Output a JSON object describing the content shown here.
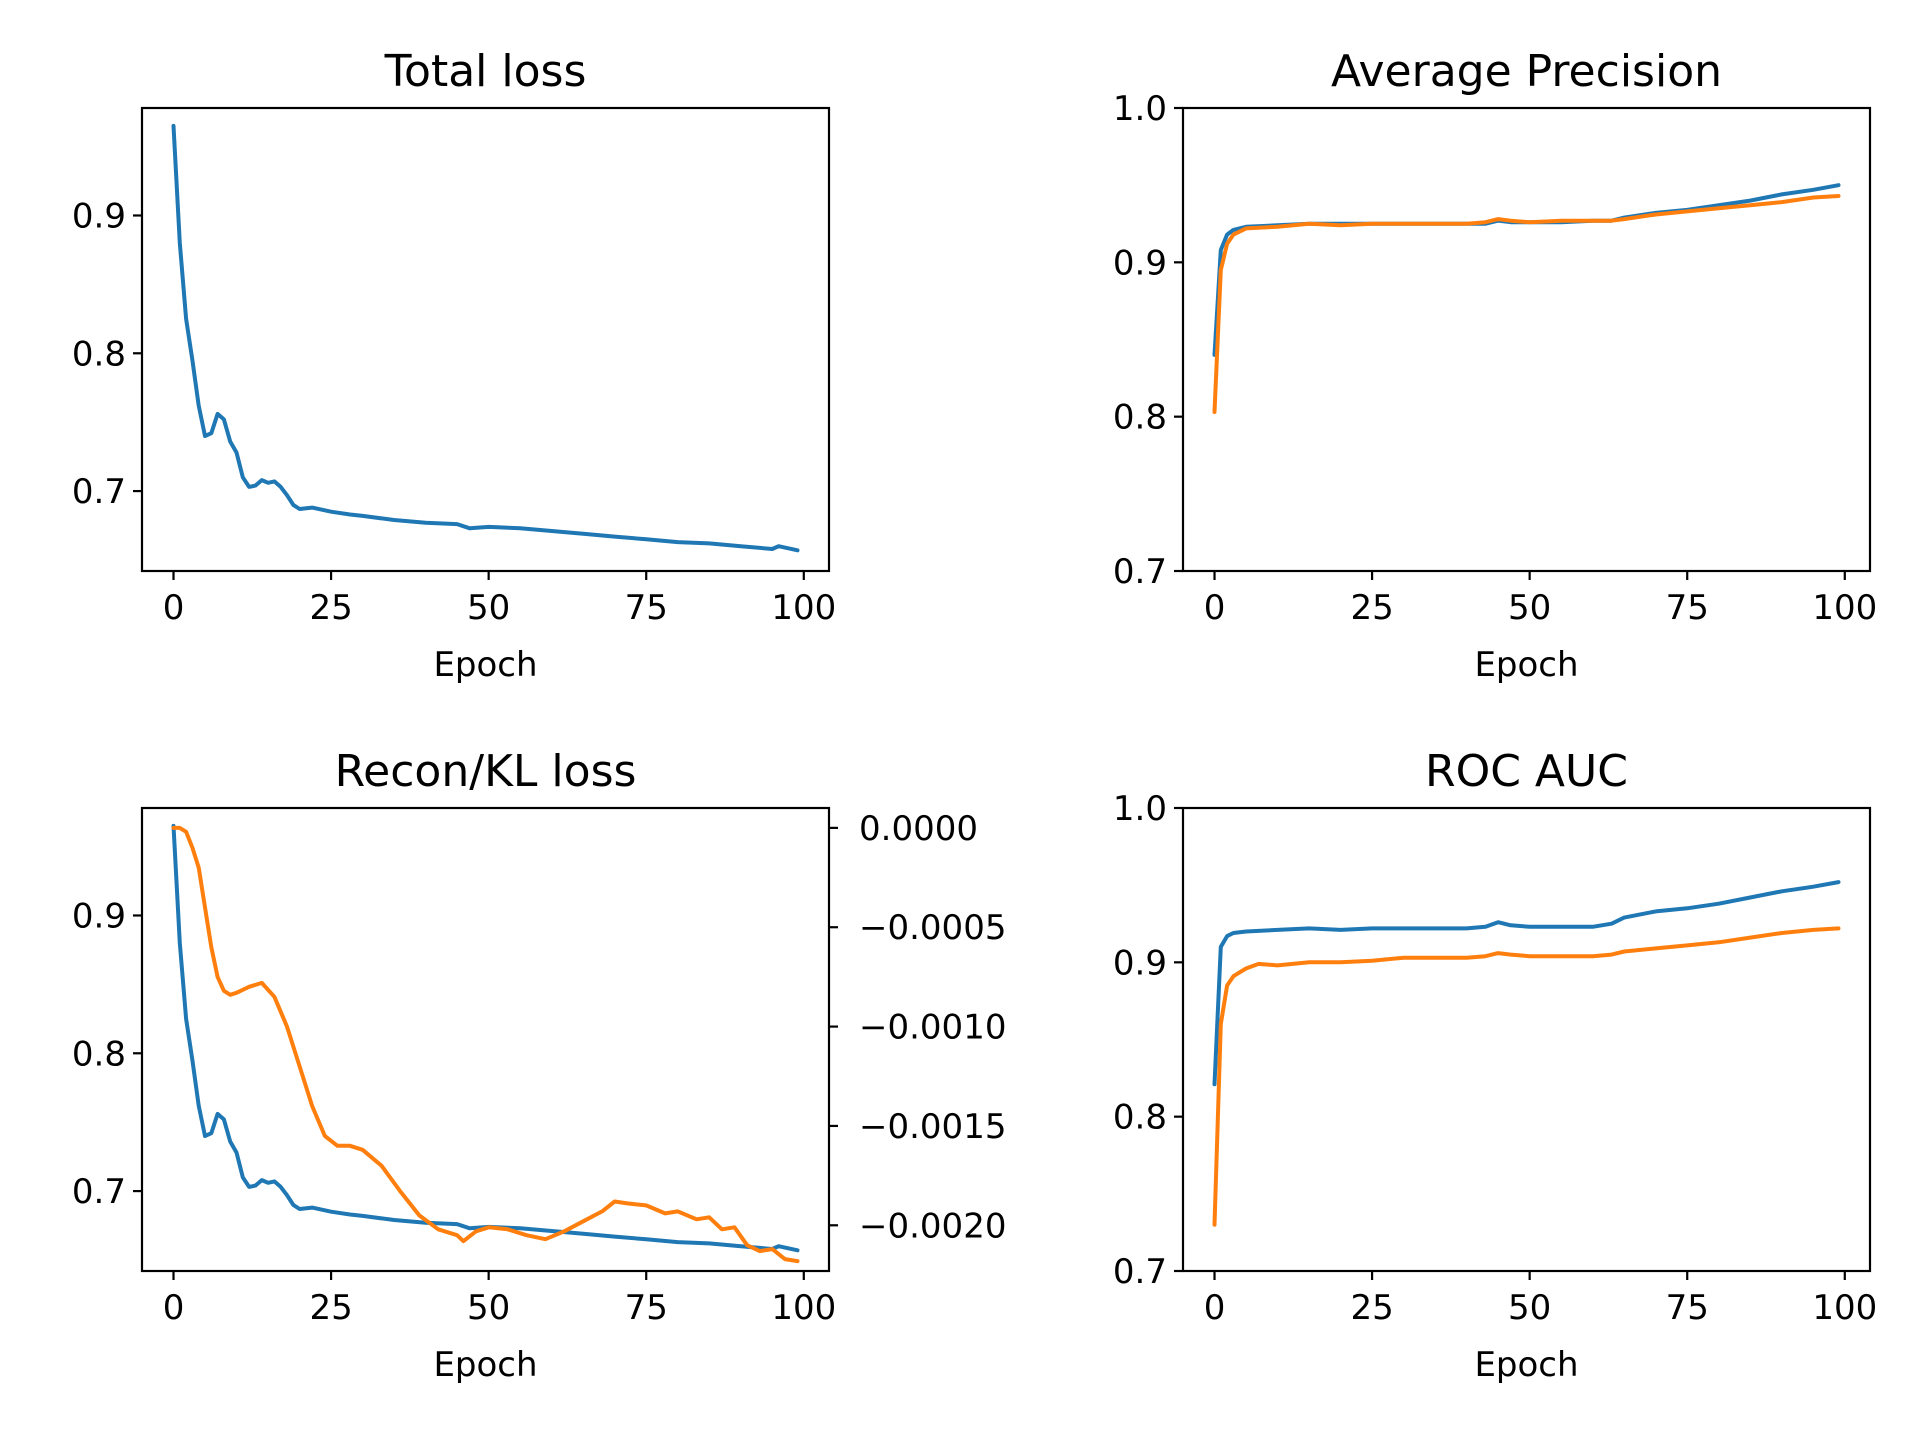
{
  "chart_data": [
    {
      "type": "line",
      "title": "Total loss",
      "xlabel": "Epoch",
      "xlim": [
        -5,
        104
      ],
      "ylim": [
        0.642,
        0.978
      ],
      "x_ticks": [
        0,
        25,
        50,
        75,
        100
      ],
      "x_tick_labels": [
        "0",
        "25",
        "50",
        "75",
        "100"
      ],
      "y_ticks": [
        0.7,
        0.8,
        0.9
      ],
      "y_tick_labels": [
        "0.7",
        "0.8",
        "0.9"
      ],
      "series": [
        {
          "color": "#1f77b4",
          "axis": "left",
          "x": [
            0,
            1,
            2,
            3,
            4,
            5,
            6,
            7,
            8,
            9,
            10,
            11,
            12,
            13,
            14,
            15,
            16,
            17,
            18,
            19,
            20,
            22,
            25,
            28,
            30,
            35,
            40,
            45,
            47,
            50,
            55,
            60,
            65,
            70,
            75,
            80,
            85,
            90,
            95,
            96,
            99
          ],
          "y": [
            0.965,
            0.88,
            0.825,
            0.795,
            0.762,
            0.74,
            0.742,
            0.756,
            0.752,
            0.736,
            0.728,
            0.71,
            0.703,
            0.704,
            0.708,
            0.706,
            0.707,
            0.703,
            0.697,
            0.69,
            0.687,
            0.688,
            0.685,
            0.683,
            0.682,
            0.679,
            0.677,
            0.676,
            0.673,
            0.674,
            0.673,
            0.671,
            0.669,
            0.667,
            0.665,
            0.663,
            0.662,
            0.66,
            0.658,
            0.66,
            0.657
          ]
        }
      ]
    },
    {
      "type": "line",
      "title": "Average Precision",
      "xlabel": "Epoch",
      "xlim": [
        -5,
        104
      ],
      "ylim": [
        0.7,
        1.0
      ],
      "x_ticks": [
        0,
        25,
        50,
        75,
        100
      ],
      "x_tick_labels": [
        "0",
        "25",
        "50",
        "75",
        "100"
      ],
      "y_ticks": [
        0.7,
        0.8,
        0.9,
        1.0
      ],
      "y_tick_labels": [
        "0.7",
        "0.8",
        "0.9",
        "1.0"
      ],
      "series": [
        {
          "color": "#1f77b4",
          "axis": "left",
          "x": [
            0,
            1,
            2,
            3,
            5,
            10,
            15,
            20,
            25,
            30,
            35,
            40,
            43,
            45,
            47,
            50,
            55,
            60,
            63,
            65,
            70,
            75,
            80,
            85,
            90,
            95,
            99
          ],
          "y": [
            0.84,
            0.908,
            0.918,
            0.921,
            0.923,
            0.924,
            0.925,
            0.925,
            0.925,
            0.925,
            0.925,
            0.925,
            0.925,
            0.927,
            0.926,
            0.926,
            0.926,
            0.927,
            0.927,
            0.929,
            0.932,
            0.934,
            0.937,
            0.94,
            0.944,
            0.947,
            0.95
          ]
        },
        {
          "color": "#ff7f0e",
          "axis": "left",
          "x": [
            0,
            1,
            2,
            3,
            5,
            10,
            15,
            20,
            25,
            30,
            35,
            40,
            43,
            45,
            47,
            50,
            55,
            60,
            63,
            65,
            70,
            75,
            80,
            85,
            90,
            95,
            99
          ],
          "y": [
            0.803,
            0.895,
            0.912,
            0.918,
            0.922,
            0.923,
            0.925,
            0.924,
            0.925,
            0.925,
            0.925,
            0.925,
            0.926,
            0.928,
            0.927,
            0.926,
            0.927,
            0.927,
            0.927,
            0.928,
            0.931,
            0.933,
            0.935,
            0.937,
            0.939,
            0.942,
            0.943
          ]
        }
      ]
    },
    {
      "type": "line",
      "title": "Recon/KL loss",
      "xlabel": "Epoch",
      "xlim": [
        -5,
        104
      ],
      "ylim": [
        0.642,
        0.978
      ],
      "y2lim": [
        -0.00223,
        0.0001
      ],
      "x_ticks": [
        0,
        25,
        50,
        75,
        100
      ],
      "x_tick_labels": [
        "0",
        "25",
        "50",
        "75",
        "100"
      ],
      "y_ticks": [
        0.7,
        0.8,
        0.9
      ],
      "y_tick_labels": [
        "0.7",
        "0.8",
        "0.9"
      ],
      "y2_ticks": [
        0.0,
        -0.0005,
        -0.001,
        -0.0015,
        -0.002
      ],
      "y2_tick_labels": [
        "0.0000",
        "−0.0005",
        "−0.0010",
        "−0.0015",
        "−0.0020"
      ],
      "series": [
        {
          "color": "#1f77b4",
          "axis": "left",
          "x": [
            0,
            1,
            2,
            3,
            4,
            5,
            6,
            7,
            8,
            9,
            10,
            11,
            12,
            13,
            14,
            15,
            16,
            17,
            18,
            19,
            20,
            22,
            25,
            28,
            30,
            35,
            40,
            45,
            47,
            50,
            55,
            60,
            65,
            70,
            75,
            80,
            85,
            90,
            95,
            96,
            99
          ],
          "y": [
            0.965,
            0.88,
            0.825,
            0.795,
            0.762,
            0.74,
            0.742,
            0.756,
            0.752,
            0.736,
            0.728,
            0.71,
            0.703,
            0.704,
            0.708,
            0.706,
            0.707,
            0.703,
            0.697,
            0.69,
            0.687,
            0.688,
            0.685,
            0.683,
            0.682,
            0.679,
            0.677,
            0.676,
            0.673,
            0.674,
            0.673,
            0.671,
            0.669,
            0.667,
            0.665,
            0.663,
            0.662,
            0.66,
            0.658,
            0.66,
            0.657
          ]
        },
        {
          "color": "#ff7f0e",
          "axis": "right",
          "x": [
            0,
            1,
            2,
            3,
            4,
            5,
            6,
            7,
            8,
            9,
            10,
            12,
            14,
            16,
            18,
            20,
            22,
            24,
            26,
            28,
            30,
            33,
            36,
            39,
            42,
            45,
            46,
            48,
            50,
            53,
            56,
            59,
            62,
            65,
            68,
            70,
            72,
            75,
            78,
            80,
            83,
            85,
            87,
            89,
            91,
            93,
            95,
            97,
            99
          ],
          "y": [
            0.0,
            0.0,
            -2e-05,
            -0.0001,
            -0.0002,
            -0.0004,
            -0.0006,
            -0.00075,
            -0.00082,
            -0.00084,
            -0.00083,
            -0.0008,
            -0.00078,
            -0.00085,
            -0.001,
            -0.0012,
            -0.0014,
            -0.00155,
            -0.0016,
            -0.0016,
            -0.00162,
            -0.0017,
            -0.00183,
            -0.00195,
            -0.00202,
            -0.00205,
            -0.00208,
            -0.00203,
            -0.00201,
            -0.00202,
            -0.00205,
            -0.00207,
            -0.00203,
            -0.00198,
            -0.00193,
            -0.00188,
            -0.00189,
            -0.0019,
            -0.00194,
            -0.00193,
            -0.00197,
            -0.00196,
            -0.00202,
            -0.00201,
            -0.0021,
            -0.00213,
            -0.00212,
            -0.00217,
            -0.00218
          ]
        }
      ]
    },
    {
      "type": "line",
      "title": "ROC AUC",
      "xlabel": "Epoch",
      "xlim": [
        -5,
        104
      ],
      "ylim": [
        0.7,
        1.0
      ],
      "x_ticks": [
        0,
        25,
        50,
        75,
        100
      ],
      "x_tick_labels": [
        "0",
        "25",
        "50",
        "75",
        "100"
      ],
      "y_ticks": [
        0.7,
        0.8,
        0.9,
        1.0
      ],
      "y_tick_labels": [
        "0.7",
        "0.8",
        "0.9",
        "1.0"
      ],
      "series": [
        {
          "color": "#1f77b4",
          "axis": "left",
          "x": [
            0,
            1,
            2,
            3,
            5,
            10,
            15,
            20,
            25,
            30,
            35,
            40,
            43,
            45,
            47,
            50,
            55,
            60,
            63,
            65,
            70,
            75,
            80,
            85,
            90,
            95,
            99
          ],
          "y": [
            0.821,
            0.91,
            0.917,
            0.919,
            0.92,
            0.921,
            0.922,
            0.921,
            0.922,
            0.922,
            0.922,
            0.922,
            0.923,
            0.926,
            0.924,
            0.923,
            0.923,
            0.923,
            0.925,
            0.929,
            0.933,
            0.935,
            0.938,
            0.942,
            0.946,
            0.949,
            0.952
          ]
        },
        {
          "color": "#ff7f0e",
          "axis": "left",
          "x": [
            0,
            1,
            2,
            3,
            5,
            7,
            10,
            15,
            20,
            25,
            30,
            35,
            40,
            43,
            45,
            47,
            50,
            55,
            60,
            63,
            65,
            70,
            75,
            80,
            85,
            90,
            95,
            99
          ],
          "y": [
            0.73,
            0.86,
            0.885,
            0.891,
            0.896,
            0.899,
            0.898,
            0.9,
            0.9,
            0.901,
            0.903,
            0.903,
            0.903,
            0.904,
            0.906,
            0.905,
            0.904,
            0.904,
            0.904,
            0.905,
            0.907,
            0.909,
            0.911,
            0.913,
            0.916,
            0.919,
            0.921,
            0.922
          ]
        }
      ]
    }
  ]
}
